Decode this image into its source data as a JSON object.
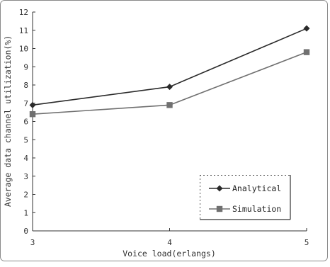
{
  "chart_data": {
    "type": "line",
    "title": "",
    "xlabel": "Voice load(erlangs)",
    "ylabel": "Average data channel utilization(%)",
    "categories": [
      "3",
      "4",
      "5"
    ],
    "x": [
      3,
      4,
      5
    ],
    "xlim": [
      3,
      5
    ],
    "ylim": [
      0,
      12
    ],
    "yticks": [
      "0",
      "1",
      "2",
      "3",
      "4",
      "5",
      "6",
      "7",
      "8",
      "9",
      "10",
      "11",
      "12"
    ],
    "grid": false,
    "legend_position": "bottom-right",
    "series": [
      {
        "name": "Analytical",
        "values": [
          6.9,
          7.9,
          11.1
        ],
        "color": "#2a2a2a",
        "marker": "diamond"
      },
      {
        "name": "Simulation",
        "values": [
          6.4,
          6.9,
          9.8
        ],
        "color": "#707070",
        "marker": "square"
      }
    ]
  }
}
